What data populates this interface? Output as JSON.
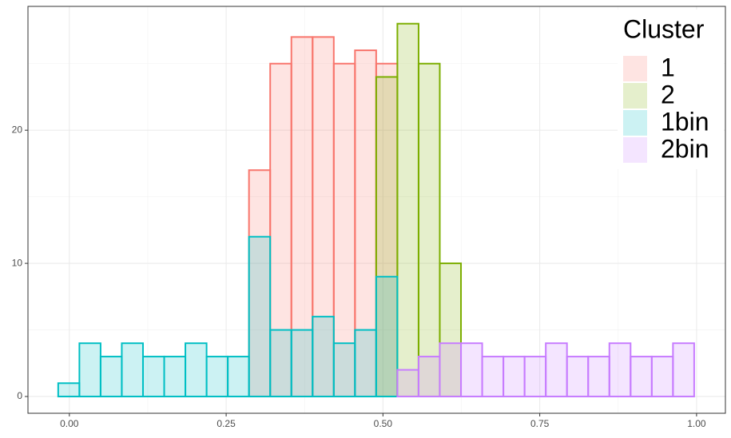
{
  "chart_data": {
    "type": "histogram",
    "bins": [
      -0.0178,
      0.016,
      0.0498,
      0.0836,
      0.1174,
      0.1512,
      0.185,
      0.2188,
      0.2526,
      0.2864,
      0.3202,
      0.354,
      0.3878,
      0.4216,
      0.4554,
      0.4892,
      0.523,
      0.5568,
      0.5906,
      0.6244,
      0.6582,
      0.692,
      0.7258,
      0.7596,
      0.7934,
      0.8272,
      0.861,
      0.8948,
      0.9286,
      0.9624,
      0.9962
    ],
    "legend_title": "Cluster",
    "series": [
      {
        "name": "1",
        "color": "#f8766d",
        "values": [
          null,
          null,
          null,
          null,
          null,
          null,
          null,
          null,
          null,
          17,
          25,
          27,
          27,
          25,
          26,
          25,
          null,
          null,
          null,
          null,
          null,
          null,
          null,
          null,
          null,
          null,
          null,
          null,
          null,
          null
        ]
      },
      {
        "name": "2",
        "color": "#7cae00",
        "values": [
          null,
          null,
          null,
          null,
          null,
          null,
          null,
          null,
          null,
          null,
          null,
          null,
          null,
          null,
          null,
          24,
          28,
          25,
          10,
          null,
          null,
          null,
          null,
          null,
          null,
          null,
          null,
          null,
          null,
          null
        ]
      },
      {
        "name": "1bin",
        "color": "#00bfc4",
        "values": [
          1,
          4,
          3,
          4,
          3,
          3,
          4,
          3,
          3,
          12,
          5,
          5,
          6,
          4,
          5,
          9,
          null,
          null,
          null,
          null,
          null,
          null,
          null,
          null,
          null,
          null,
          null,
          null,
          null,
          null
        ]
      },
      {
        "name": "2bin",
        "color": "#c77cff",
        "values": [
          null,
          null,
          null,
          null,
          null,
          null,
          null,
          null,
          null,
          null,
          null,
          null,
          null,
          null,
          null,
          null,
          2,
          3,
          4,
          4,
          3,
          3,
          3,
          4,
          3,
          3,
          4,
          3,
          3,
          4
        ]
      }
    ],
    "xlim": [
      -0.066,
      1.046
    ],
    "ylim": [
      -1.26,
      29.3
    ],
    "xticks": [
      {
        "value": 0,
        "label": "0.00"
      },
      {
        "value": 0.25,
        "label": "0.25"
      },
      {
        "value": 0.5,
        "label": "0.50"
      },
      {
        "value": 0.75,
        "label": "0.75"
      },
      {
        "value": 1,
        "label": "1.00"
      }
    ],
    "yticks": [
      0,
      10,
      20
    ],
    "grid": true,
    "legend_position": "top-right"
  }
}
